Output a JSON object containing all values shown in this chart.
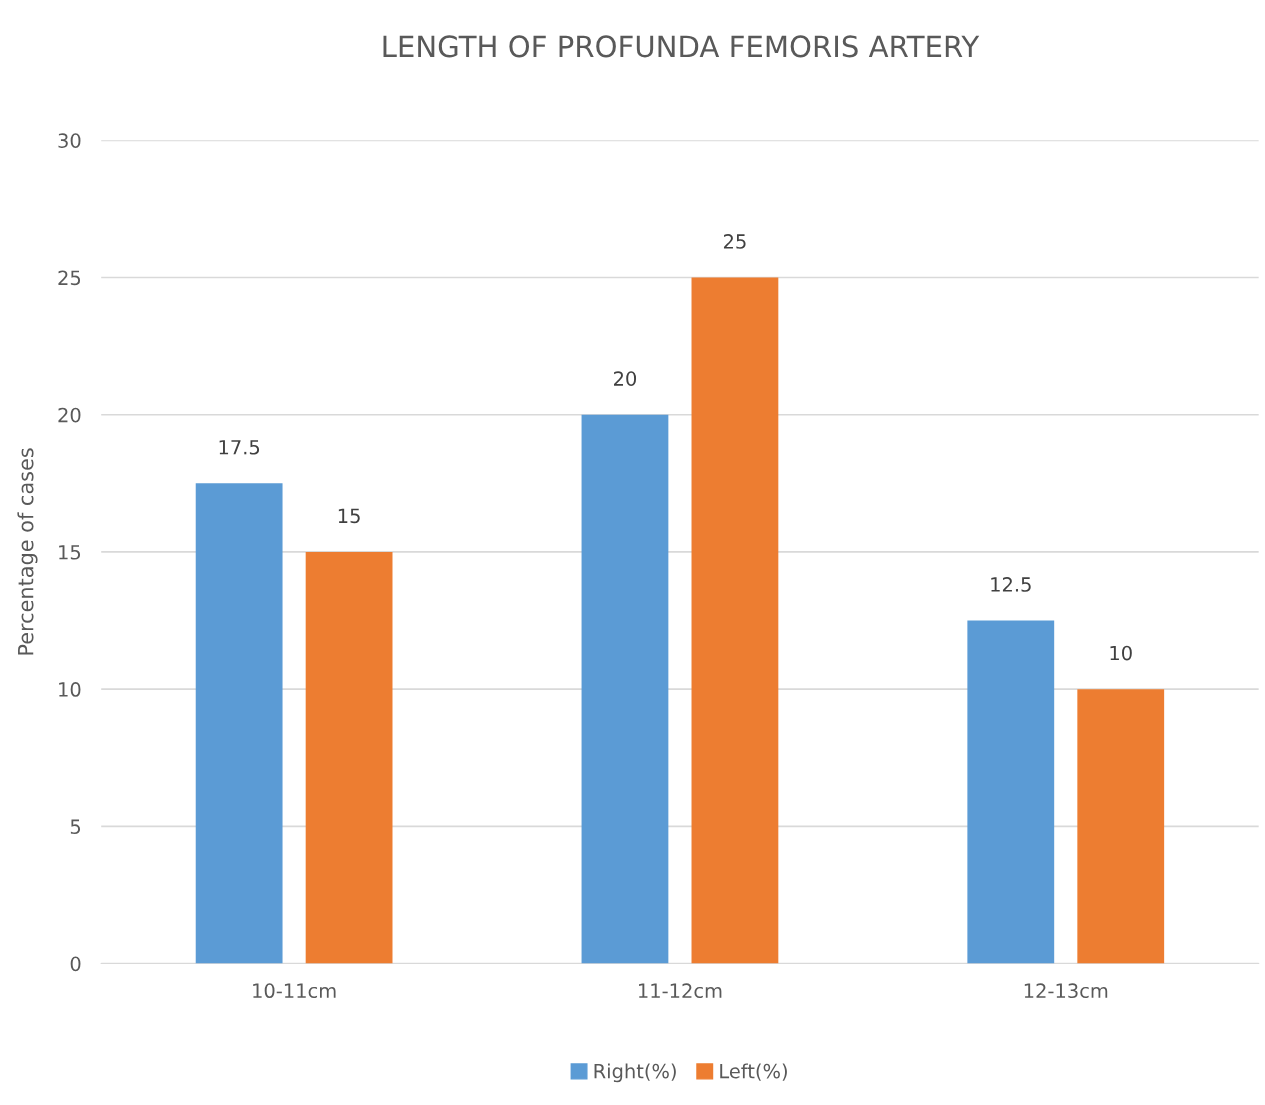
{
  "chart_data": {
    "type": "bar",
    "title": "LENGTH OF PROFUNDA FEMORIS ARTERY",
    "ylabel": "Percentage of cases",
    "categories": [
      "10-11cm",
      "11-12cm",
      "12-13cm"
    ],
    "series": [
      {
        "name": "Right(%)",
        "color": "#5b9bd5",
        "values": [
          17.5,
          20,
          12.5
        ]
      },
      {
        "name": "Left(%)",
        "color": "#ed7d31",
        "values": [
          15,
          25,
          10
        ]
      }
    ],
    "ylim": [
      0,
      30
    ],
    "yticks": [
      0,
      5,
      10,
      15,
      20,
      25,
      30
    ],
    "grid": "y",
    "legend": "bottom",
    "data_labels": true
  }
}
